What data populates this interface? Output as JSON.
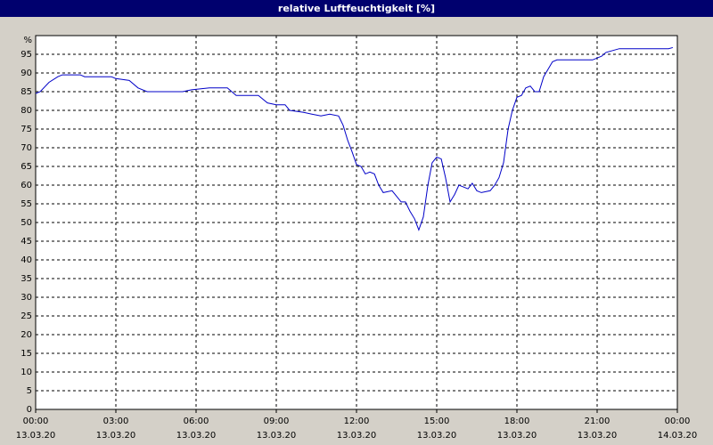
{
  "chart_data": {
    "type": "line",
    "title": "relative Luftfeuchtigkeit [%]",
    "y_unit_label": "%",
    "x": [
      0,
      0.17,
      0.5,
      0.83,
      1,
      1.67,
      1.83,
      2,
      2.83,
      3,
      3.5,
      3.83,
      4.17,
      5.5,
      5.83,
      6.5,
      7.17,
      7.5,
      8.33,
      8.67,
      9,
      9.33,
      9.5,
      10,
      10.33,
      10.67,
      11,
      11.33,
      11.5,
      11.67,
      11.83,
      12,
      12.17,
      12.33,
      12.5,
      12.67,
      12.83,
      13,
      13.33,
      13.5,
      13.67,
      13.83,
      14,
      14.17,
      14.33,
      14.5,
      14.67,
      14.83,
      15,
      15.17,
      15.33,
      15.5,
      15.67,
      15.83,
      16,
      16.17,
      16.33,
      16.5,
      16.67,
      17,
      17.17,
      17.33,
      17.5,
      17.67,
      17.83,
      18,
      18.17,
      18.33,
      18.5,
      18.67,
      18.83,
      19,
      19.33,
      19.5,
      20.83,
      21.17,
      21.33,
      21.83,
      23.67,
      23.83
    ],
    "series": [
      {
        "name": "relative Luftfeuchtigkeit",
        "color": "#0000c8",
        "values": [
          84.5,
          85,
          87.5,
          89,
          89.5,
          89.5,
          89,
          89,
          89,
          88.5,
          88,
          86,
          85,
          85,
          85.5,
          86,
          86,
          84,
          84,
          82,
          81.5,
          81.5,
          80,
          79.5,
          79,
          78.5,
          79,
          78.5,
          76,
          72,
          69,
          65.5,
          65,
          63,
          63.5,
          63,
          60,
          58,
          58.5,
          57,
          55.5,
          55.5,
          53,
          51,
          48,
          51.5,
          60,
          66,
          67.5,
          67,
          62,
          55.5,
          57.5,
          60,
          59.5,
          59,
          60.5,
          58.5,
          58,
          58.5,
          60,
          62,
          66,
          75,
          80,
          83.5,
          84,
          86,
          86.5,
          85,
          85,
          89,
          93,
          93.5,
          93.5,
          94.5,
          95.5,
          96.5,
          96.5,
          96.8
        ]
      }
    ],
    "xlim": [
      0,
      24
    ],
    "xticks": [
      {
        "value": 0,
        "label": "00:00"
      },
      {
        "value": 3,
        "label": "03:00"
      },
      {
        "value": 6,
        "label": "06:00"
      },
      {
        "value": 9,
        "label": "09:00"
      },
      {
        "value": 12,
        "label": "12:00"
      },
      {
        "value": 15,
        "label": "15:00"
      },
      {
        "value": 18,
        "label": "18:00"
      },
      {
        "value": 21,
        "label": "21:00"
      },
      {
        "value": 24,
        "label": "00:00"
      }
    ],
    "xtick_dates": [
      "13.03.20",
      "13.03.20",
      "13.03.20",
      "13.03.20",
      "13.03.20",
      "13.03.20",
      "13.03.20",
      "13.03.20",
      "14.03.20"
    ],
    "ylim": [
      0,
      100
    ],
    "yticks": [
      0,
      5,
      10,
      15,
      20,
      25,
      30,
      35,
      40,
      45,
      50,
      55,
      60,
      65,
      70,
      75,
      80,
      85,
      90,
      95
    ],
    "grid": true
  }
}
